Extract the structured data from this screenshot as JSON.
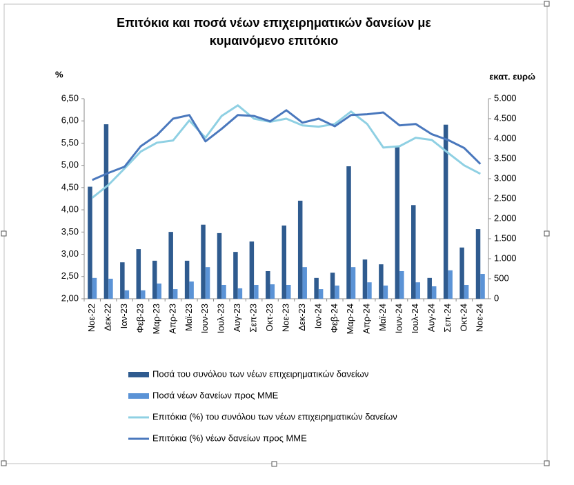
{
  "chart_data": {
    "type": "combo",
    "title": "Επιτόκια και ποσά νέων επιχειρηματικών δανείων με κυμαινόμενο επιτόκιο",
    "y_label": "%",
    "y2_label": "εκατ. ευρώ",
    "categories": [
      "Νοε-22",
      "Δεκ-22",
      "Ιαν-23",
      "Φεβ-23",
      "Μαρ-23",
      "Απρ-23",
      "Μαϊ-23",
      "Ιουν-23",
      "Ιουλ-23",
      "Αυγ-23",
      "Σεπ-23",
      "Οκτ-23",
      "Νοε-23",
      "Δεκ-23",
      "Ιαν-24",
      "Φεβ-24",
      "Μαρ-24",
      "Απρ-24",
      "Μαϊ-24",
      "Ιουν-24",
      "Ιουλ-24",
      "Αυγ-24",
      "Σεπ-24",
      "Οκτ-24",
      "Νοε-24"
    ],
    "series": [
      {
        "name": "Ποσά του συνόλου των νέων επιχειρηματικών δανείων",
        "type": "bar",
        "axis": "y2",
        "color": "#2f5b8f",
        "values": [
          2800,
          4360,
          910,
          1240,
          950,
          1670,
          950,
          1850,
          1640,
          1170,
          1430,
          690,
          1830,
          2450,
          520,
          650,
          3310,
          980,
          860,
          3810,
          2340,
          520,
          4350,
          1280,
          1740
        ]
      },
      {
        "name": "Ποσά νέων δανείων προς ΜΜΕ",
        "type": "bar",
        "axis": "y2",
        "color": "#5b93d6",
        "values": [
          520,
          500,
          210,
          210,
          380,
          240,
          430,
          790,
          345,
          260,
          345,
          360,
          345,
          790,
          240,
          330,
          790,
          410,
          330,
          690,
          410,
          310,
          710,
          345,
          620
        ]
      },
      {
        "name": "Επιτόκια (%) του συνόλου των νέων επιχειρηματικών δανείων",
        "type": "line",
        "axis": "y",
        "color": "#8fd0e3",
        "values": [
          4.27,
          4.56,
          4.93,
          5.31,
          5.51,
          5.56,
          6.01,
          5.62,
          6.11,
          6.35,
          6.05,
          5.98,
          6.05,
          5.9,
          5.87,
          5.93,
          6.21,
          5.93,
          5.4,
          5.43,
          5.62,
          5.57,
          5.28,
          5.0,
          4.81
        ]
      },
      {
        "name": "Επιτόκια (%) νέων δανείων προς ΜΜΕ",
        "type": "line",
        "axis": "y",
        "color": "#4a78bd",
        "values": [
          4.67,
          4.83,
          4.97,
          5.43,
          5.68,
          6.05,
          6.13,
          5.54,
          5.82,
          6.13,
          6.11,
          5.99,
          6.24,
          5.96,
          6.05,
          5.88,
          6.13,
          6.15,
          6.19,
          5.9,
          5.93,
          5.7,
          5.57,
          5.39,
          5.03
        ]
      }
    ],
    "ylim": [
      2,
      6.5
    ],
    "yticks": [
      {
        "value": 2,
        "label": "2,00"
      },
      {
        "value": 2.5,
        "label": "2,50"
      },
      {
        "value": 3,
        "label": "3,00"
      },
      {
        "value": 3.5,
        "label": "3,50"
      },
      {
        "value": 4,
        "label": "4,00"
      },
      {
        "value": 4.5,
        "label": "4,50"
      },
      {
        "value": 5,
        "label": "5,00"
      },
      {
        "value": 5.5,
        "label": "5,50"
      },
      {
        "value": 6,
        "label": "6,00"
      },
      {
        "value": 6.5,
        "label": "6,50"
      }
    ],
    "y2lim": [
      0,
      5000
    ],
    "y2ticks": [
      0,
      500,
      {
        "value": 1000,
        "label": "1.000"
      },
      {
        "value": 1500,
        "label": "1.500"
      },
      {
        "value": 2000,
        "label": "2.000"
      },
      {
        "value": 2500,
        "label": "2.500"
      },
      {
        "value": 3000,
        "label": "3.000"
      },
      {
        "value": 3500,
        "label": "3.500"
      },
      {
        "value": 4000,
        "label": "4.000"
      },
      {
        "value": 4500,
        "label": "4.500"
      },
      {
        "value": 5000,
        "label": "5.000"
      }
    ]
  }
}
